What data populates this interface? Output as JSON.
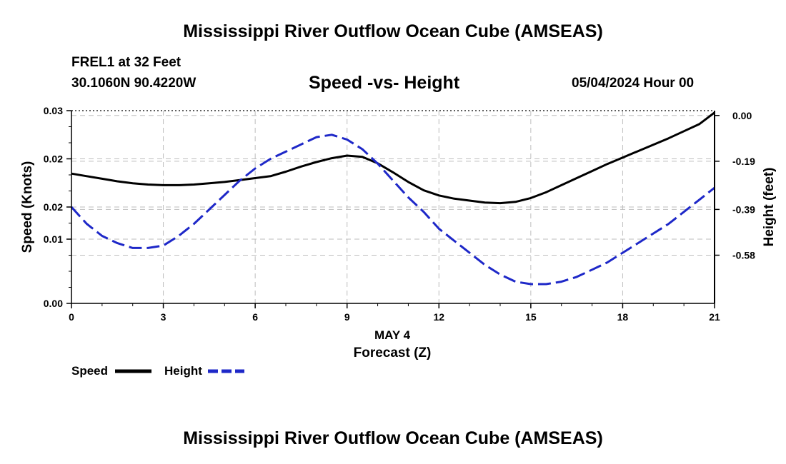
{
  "page": {
    "title": "Mississippi River Outflow Ocean Cube (AMSEAS)",
    "title_repeat": "Mississippi River Outflow Ocean Cube (AMSEAS)",
    "station": "FREL1 at 32 Feet",
    "coords": "30.1060N  90.4220W",
    "datetime": "05/04/2024 Hour 00"
  },
  "chart_data": {
    "type": "line",
    "title": "Speed -vs- Height",
    "xlabel": "Forecast (Z)",
    "xlabel_date": "MAY 4",
    "ylabel": "Speed (Knots)",
    "y2label": "Height (feet)",
    "xlim": [
      0,
      21
    ],
    "ylim": [
      0,
      0.03
    ],
    "y2lim": [
      -0.78,
      0.02
    ],
    "x_ticks": [
      0,
      3,
      6,
      9,
      12,
      15,
      18,
      21
    ],
    "y_ticks": [
      {
        "value": 0.0,
        "label": "0.00"
      },
      {
        "value": 0.01,
        "label": "0.01"
      },
      {
        "value": 0.015,
        "label": "0.02"
      },
      {
        "value": 0.0225,
        "label": "0.02"
      },
      {
        "value": 0.03,
        "label": "0.03"
      }
    ],
    "y2_ticks": [
      {
        "value": 0.0,
        "label": "0.00"
      },
      {
        "value": -0.19,
        "label": "-0.19"
      },
      {
        "value": -0.39,
        "label": "-0.39"
      },
      {
        "value": -0.58,
        "label": "-0.58"
      }
    ],
    "grid": true,
    "series": [
      {
        "name": "Speed",
        "axis": "left",
        "color": "#000000",
        "dash": false,
        "x": [
          0,
          0.5,
          1,
          1.5,
          2,
          2.5,
          3,
          3.5,
          4,
          4.5,
          5,
          5.5,
          6,
          6.5,
          7,
          7.5,
          8,
          8.5,
          9,
          9.5,
          10,
          10.5,
          11,
          11.5,
          12,
          12.5,
          13,
          13.5,
          14,
          14.5,
          15,
          15.5,
          16,
          16.5,
          17,
          17.5,
          18,
          18.5,
          19,
          19.5,
          20,
          20.5,
          21
        ],
        "values": [
          0.0202,
          0.0198,
          0.0194,
          0.019,
          0.0187,
          0.0185,
          0.0184,
          0.0184,
          0.0185,
          0.0187,
          0.0189,
          0.0192,
          0.0195,
          0.0198,
          0.0205,
          0.0213,
          0.022,
          0.0226,
          0.023,
          0.0228,
          0.0218,
          0.0204,
          0.0189,
          0.0176,
          0.0168,
          0.0163,
          0.016,
          0.0157,
          0.0156,
          0.0158,
          0.0164,
          0.0173,
          0.0184,
          0.0195,
          0.0206,
          0.0217,
          0.0227,
          0.0237,
          0.0247,
          0.0257,
          0.0268,
          0.0279,
          0.0297
        ]
      },
      {
        "name": "Height",
        "axis": "right",
        "color": "#1e28c8",
        "dash": true,
        "x": [
          0,
          0.5,
          1,
          1.5,
          2,
          2.5,
          3,
          3.5,
          4,
          4.5,
          5,
          5.5,
          6,
          6.5,
          7,
          7.5,
          8,
          8.5,
          9,
          9.5,
          10,
          10.5,
          11,
          11.5,
          12,
          12.5,
          13,
          13.5,
          14,
          14.5,
          15,
          15.5,
          16,
          16.5,
          17,
          17.5,
          18,
          18.5,
          19,
          19.5,
          20,
          20.5,
          21
        ],
        "values": [
          -0.38,
          -0.45,
          -0.5,
          -0.53,
          -0.55,
          -0.55,
          -0.54,
          -0.5,
          -0.45,
          -0.39,
          -0.33,
          -0.27,
          -0.22,
          -0.18,
          -0.15,
          -0.12,
          -0.09,
          -0.08,
          -0.1,
          -0.14,
          -0.2,
          -0.27,
          -0.34,
          -0.4,
          -0.47,
          -0.52,
          -0.57,
          -0.62,
          -0.66,
          -0.69,
          -0.7,
          -0.7,
          -0.69,
          -0.67,
          -0.64,
          -0.61,
          -0.57,
          -0.53,
          -0.49,
          -0.45,
          -0.4,
          -0.35,
          -0.3
        ]
      }
    ],
    "legend": [
      {
        "name": "Speed",
        "color": "#000000",
        "dash": false
      },
      {
        "name": "Height",
        "color": "#1e28c8",
        "dash": true
      }
    ]
  }
}
